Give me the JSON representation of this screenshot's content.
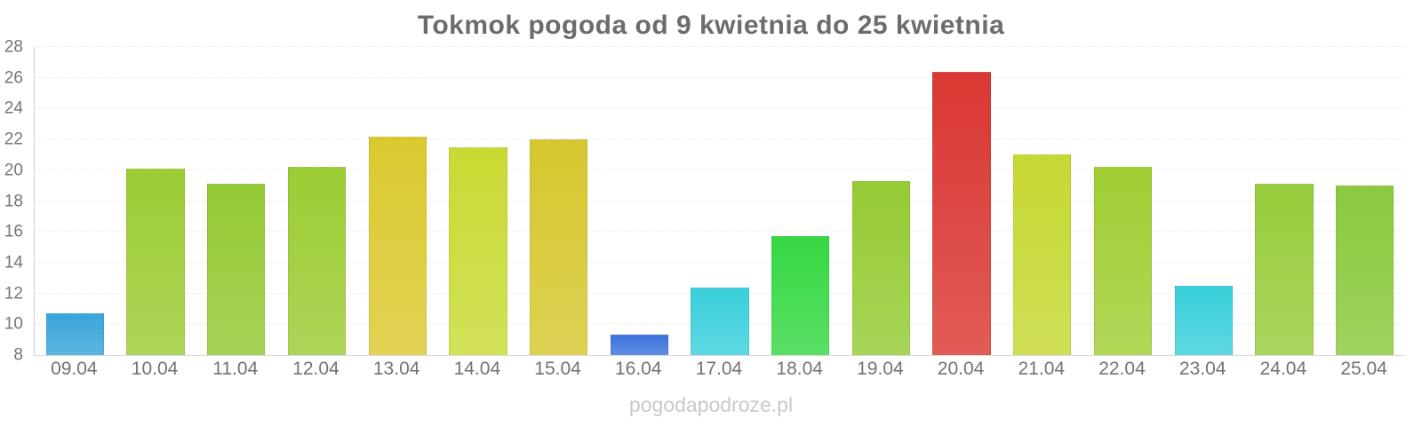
{
  "title": "Tokmok pogoda od 9 kwietnia do 25 kwietnia",
  "watermark": "pogodapodroze.pl",
  "chart_data": {
    "type": "bar",
    "title": "Tokmok pogoda od 9 kwietnia do 25 kwietnia",
    "xlabel": "",
    "ylabel": "",
    "ylim": [
      8,
      28
    ],
    "yticks": [
      8,
      10,
      12,
      14,
      16,
      18,
      20,
      22,
      24,
      26,
      28
    ],
    "grid": true,
    "legend": false,
    "categories": [
      "09.04",
      "10.04",
      "11.04",
      "12.04",
      "13.04",
      "14.04",
      "15.04",
      "16.04",
      "17.04",
      "18.04",
      "19.04",
      "20.04",
      "21.04",
      "22.04",
      "23.04",
      "24.04",
      "25.04"
    ],
    "values": [
      10.7,
      20.1,
      19.1,
      20.2,
      22.2,
      21.5,
      22.0,
      9.3,
      12.4,
      15.7,
      19.3,
      26.4,
      21.0,
      20.2,
      12.5,
      19.1,
      19.0
    ],
    "bar_colors": [
      "#39a5d9",
      "#9ccc33",
      "#93ca33",
      "#9ccc33",
      "#dbc92f",
      "#c9da33",
      "#d6c72e",
      "#3b74de",
      "#3acfdc",
      "#36d843",
      "#95cb33",
      "#da3732",
      "#c6d832",
      "#a0ce33",
      "#3acfdc",
      "#97cd3c",
      "#8bc93d"
    ],
    "style_colors": {
      "title_text": "#6c6c6c",
      "axis_label_text": "#757575",
      "gridline": "#e9e9e9",
      "axis_line": "#cfcfcf",
      "watermark_text": "#c9c9c9",
      "background": "#ffffff"
    }
  }
}
